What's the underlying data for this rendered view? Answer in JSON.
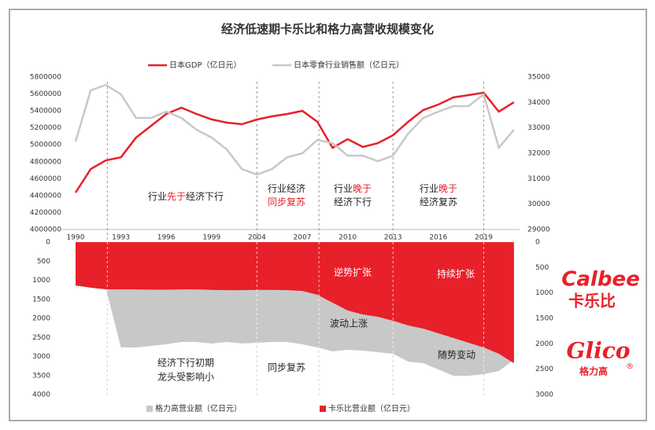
{
  "chart_data": [
    {
      "type": "line",
      "title": "经济低速期卡乐比和格力高营收规模变化",
      "categories": [
        "1990",
        null,
        null,
        "1993",
        null,
        null,
        "1996",
        null,
        null,
        "1999",
        null,
        null,
        "2004",
        null,
        null,
        "2007",
        null,
        null,
        "2010",
        null,
        null,
        "2013",
        null,
        null,
        "2016",
        null,
        null,
        "2019",
        null,
        null
      ],
      "series": [
        {
          "name": "日本GDP（亿日元）",
          "color": "#e8202a",
          "values": [
            4436000,
            4714000,
            4816000,
            4853000,
            5085000,
            5225000,
            5364000,
            5438000,
            5364000,
            5300000,
            5262000,
            5243000,
            5299000,
            5336000,
            5364000,
            5401000,
            5271000,
            4965000,
            5067000,
            4975000,
            5020000,
            5113000,
            5271000,
            5410000,
            5475000,
            5560000,
            5587000,
            5615000,
            5392000,
            5503000
          ]
        },
        {
          "name": "日本零食行业销售额（亿日元）",
          "color": "#c8c8c8",
          "axis": "y2",
          "values": [
            32464,
            34474,
            34691,
            34320,
            33392,
            33392,
            33639,
            33392,
            32928,
            32619,
            32155,
            31381,
            31165,
            31381,
            31845,
            32000,
            32526,
            32402,
            31907,
            31907,
            31691,
            31907,
            32773,
            33392,
            33639,
            33856,
            33856,
            34320,
            32216,
            32928
          ]
        }
      ],
      "ylim": [
        4000000,
        5800000
      ],
      "yticks": [
        4000000,
        4200000,
        4400000,
        4600000,
        4800000,
        5000000,
        5200000,
        5400000,
        5600000,
        5800000
      ],
      "y2lim": [
        29000,
        35000
      ],
      "y2ticks": [
        29000,
        30000,
        31000,
        32000,
        33000,
        34000,
        35000
      ],
      "annotations": [
        [
          [
            {
              "text": "行业"
            },
            {
              "text": "先于",
              "color": "#e8202a"
            },
            {
              "text": "经济下行"
            }
          ]
        ],
        [
          [
            {
              "text": "行业经济"
            }
          ],
          [
            {
              "text": "同步复苏",
              "color": "#e8202a"
            }
          ]
        ],
        [
          [
            {
              "text": "行业"
            },
            {
              "text": "晚于",
              "color": "#e8202a"
            }
          ],
          [
            {
              "text": "经济下行"
            }
          ]
        ],
        [
          [
            {
              "text": "行业"
            },
            {
              "text": "晚于",
              "color": "#e8202a"
            }
          ],
          [
            {
              "text": "经济复苏"
            }
          ]
        ]
      ]
    },
    {
      "type": "area",
      "series": [
        {
          "name": "格力高营业额（亿日元）",
          "color": "#c8c8c8",
          "values": [
            1150,
            1180,
            1200,
            2763,
            2763,
            2722,
            2680,
            2619,
            2619,
            2660,
            2619,
            2660,
            2639,
            2619,
            2619,
            2680,
            2763,
            2866,
            2825,
            2845,
            2887,
            2928,
            3134,
            3175,
            3340,
            3505,
            3505,
            3464,
            3381,
            3093
          ]
        },
        {
          "name": "卡乐比营业额（亿日元）",
          "color": "#e8202a",
          "axis": "y2",
          "values": [
            850,
            897,
            928,
            930,
            930,
            935,
            935,
            930,
            930,
            940,
            945,
            945,
            940,
            940,
            945,
            960,
            1036,
            1191,
            1345,
            1423,
            1469,
            1546,
            1639,
            1701,
            1794,
            1887,
            1979,
            2072,
            2196,
            2381
          ]
        }
      ],
      "ylim": [
        0,
        4000
      ],
      "yticks": [
        0,
        500,
        1000,
        1500,
        2000,
        2500,
        3000,
        3500,
        4000
      ],
      "y2lim": [
        0,
        3000
      ],
      "y2ticks": [
        0,
        500,
        1000,
        1500,
        2000,
        2500,
        3000
      ],
      "inverted": true,
      "annotations": [
        "逆势扩张",
        "持续扩张",
        "波动上涨",
        "随势变动",
        "经济下行初期",
        "龙头受影响小",
        "同步复苏"
      ]
    }
  ],
  "logos": [
    "Calbee",
    "卡乐比",
    "Glico",
    "格力高",
    "®"
  ]
}
